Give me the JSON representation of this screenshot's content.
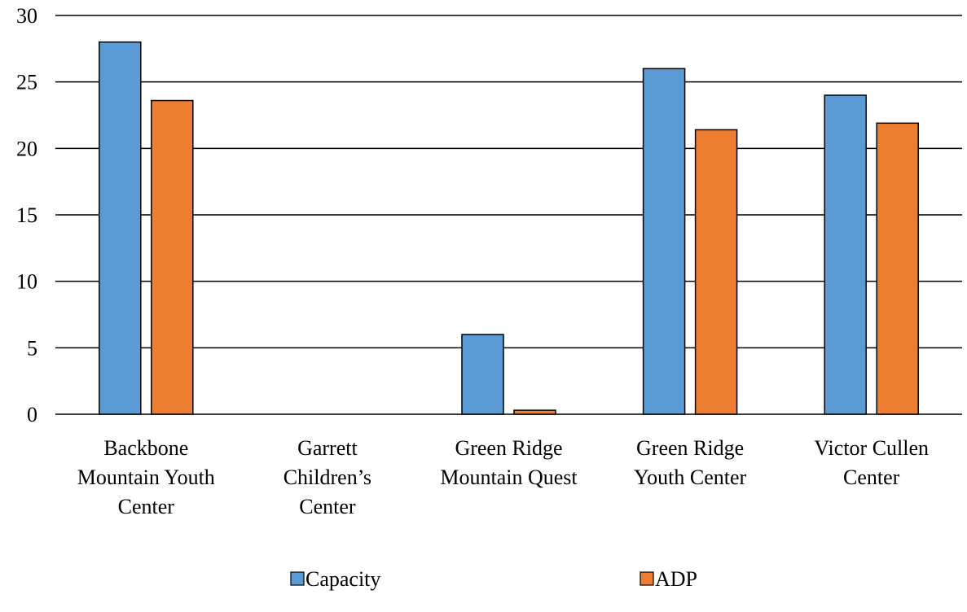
{
  "chart_data": {
    "type": "bar",
    "categories": [
      [
        "Backbone",
        "Mountain Youth",
        "Center"
      ],
      [
        "Garrett",
        "Children’s",
        "Center"
      ],
      [
        "Green Ridge",
        "Mountain Quest"
      ],
      [
        "Green Ridge",
        "Youth Center"
      ],
      [
        "Victor Cullen",
        "Center"
      ]
    ],
    "series": [
      {
        "name": "Capacity",
        "color": "#5B9BD5",
        "values": [
          28,
          0,
          6,
          26,
          24
        ]
      },
      {
        "name": "ADP",
        "color": "#ED7D31",
        "values": [
          23.6,
          0,
          0.3,
          21.4,
          21.9
        ]
      }
    ],
    "ylim": [
      0,
      30
    ],
    "yticks": [
      0,
      5,
      10,
      15,
      20,
      25,
      30
    ],
    "grid": true,
    "legend_position": "bottom",
    "title": "",
    "xlabel": "",
    "ylabel": ""
  }
}
